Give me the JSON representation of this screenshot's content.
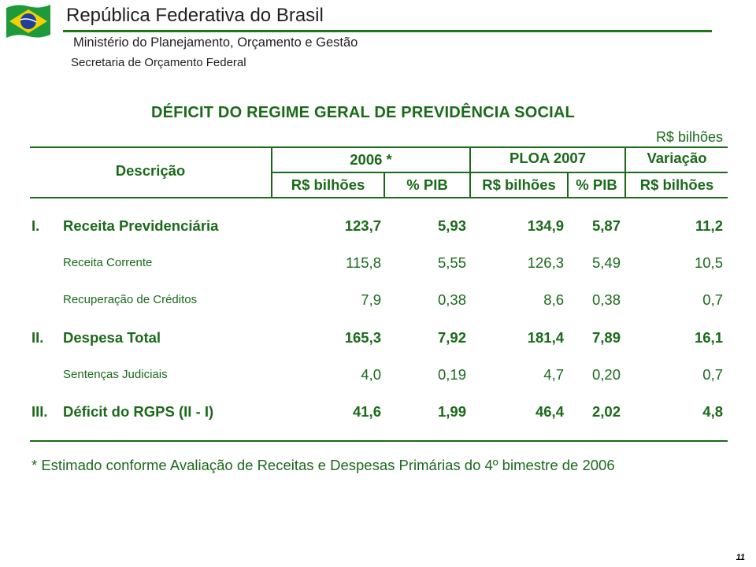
{
  "header": {
    "title": "República Federativa do Brasil",
    "ministry": "Ministério do Planejamento, Orçamento e Gestão",
    "secretariat": "Secretaria de Orçamento Federal"
  },
  "table": {
    "title": "DÉFICIT DO REGIME GERAL DE PREVIDÊNCIA SOCIAL",
    "unit": "R$ bilhões",
    "headers": {
      "descricao": "Descrição",
      "group_2006": "2006 *",
      "group_ploa": "PLOA 2007",
      "group_var": "Variação",
      "sub": [
        "R$ bilhões",
        "% PIB",
        "R$ bilhões",
        "% PIB",
        "R$ bilhões"
      ]
    },
    "rows": [
      {
        "num": "I.",
        "label": "Receita Previdenciária",
        "values": [
          "123,7",
          "5,93",
          "134,9",
          "5,87",
          "11,2"
        ],
        "bold": true
      },
      {
        "num": "",
        "label": "Receita Corrente",
        "values": [
          "115,8",
          "5,55",
          "126,3",
          "5,49",
          "10,5"
        ],
        "bold": false
      },
      {
        "num": "",
        "label": "Recuperação de Créditos",
        "values": [
          "7,9",
          "0,38",
          "8,6",
          "0,38",
          "0,7"
        ],
        "bold": false
      },
      {
        "num": "II.",
        "label": "Despesa Total",
        "values": [
          "165,3",
          "7,92",
          "181,4",
          "7,89",
          "16,1"
        ],
        "bold": true
      },
      {
        "num": "",
        "label": "Sentenças Judiciais",
        "values": [
          "4,0",
          "0,19",
          "4,7",
          "0,20",
          "0,7"
        ],
        "bold": false
      },
      {
        "num": "III.",
        "label": "Déficit do RGPS (II - I)",
        "values": [
          "41,6",
          "1,99",
          "46,4",
          "2,02",
          "4,8"
        ],
        "bold": true
      }
    ],
    "footnote": "* Estimado conforme Avaliação de Receitas e Despesas Primárias do 4º bimestre de 2006"
  },
  "page_number": "11",
  "colors": {
    "green": "#1a6a1a",
    "rule": "#1a7a1a"
  },
  "icons": {
    "flag": "brazil-flag-icon"
  }
}
